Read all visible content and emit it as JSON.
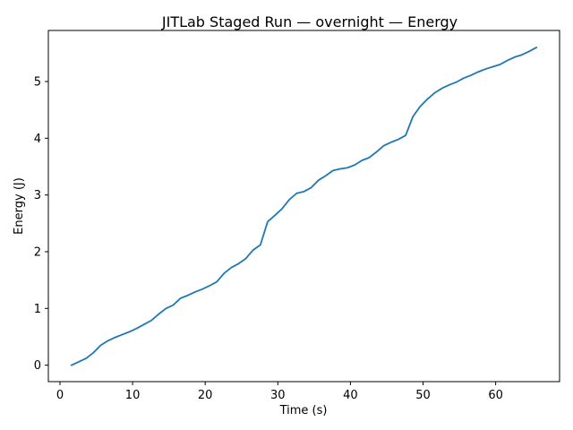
{
  "chart_data": {
    "type": "line",
    "title": "JITLab Staged Run — overnight — Energy",
    "xlabel": "Time (s)",
    "ylabel": "Energy (J)",
    "xlim": [
      -1.6,
      68.8
    ],
    "ylim": [
      -0.29,
      5.9
    ],
    "xticks": [
      0,
      10,
      20,
      30,
      40,
      50,
      60
    ],
    "yticks": [
      0,
      1,
      2,
      3,
      4,
      5
    ],
    "grid": false,
    "series": [
      {
        "color": "#1f77b4",
        "x": [
          1.6,
          2.6,
          3.6,
          4.6,
          5.6,
          6.6,
          7.6,
          8.6,
          9.6,
          10.6,
          11.6,
          12.6,
          13.6,
          14.6,
          15.6,
          16.6,
          17.6,
          18.6,
          19.6,
          20.6,
          21.6,
          22.6,
          23.6,
          24.6,
          25.6,
          26.6,
          27.6,
          28.6,
          29.6,
          30.6,
          31.6,
          32.6,
          33.6,
          34.6,
          35.6,
          36.6,
          37.6,
          38.6,
          39.6,
          40.6,
          41.6,
          42.6,
          43.6,
          44.6,
          45.6,
          46.6,
          47.6,
          48.6,
          49.6,
          50.6,
          51.6,
          52.6,
          53.6,
          54.6,
          55.6,
          56.6,
          57.6,
          58.6,
          59.6,
          60.6,
          61.6,
          62.6,
          63.6,
          64.6,
          65.6
        ],
        "values": [
          0.0,
          0.06,
          0.12,
          0.22,
          0.35,
          0.43,
          0.49,
          0.54,
          0.59,
          0.65,
          0.72,
          0.79,
          0.9,
          1.0,
          1.06,
          1.18,
          1.23,
          1.29,
          1.34,
          1.4,
          1.47,
          1.62,
          1.72,
          1.79,
          1.88,
          2.03,
          2.12,
          2.53,
          2.64,
          2.76,
          2.92,
          3.03,
          3.06,
          3.13,
          3.26,
          3.34,
          3.43,
          3.46,
          3.48,
          3.53,
          3.61,
          3.66,
          3.76,
          3.87,
          3.93,
          3.98,
          4.05,
          4.38,
          4.56,
          4.69,
          4.8,
          4.88,
          4.94,
          4.99,
          5.06,
          5.11,
          5.17,
          5.22,
          5.26,
          5.3,
          5.37,
          5.43,
          5.47,
          5.53,
          5.6
        ]
      }
    ]
  }
}
